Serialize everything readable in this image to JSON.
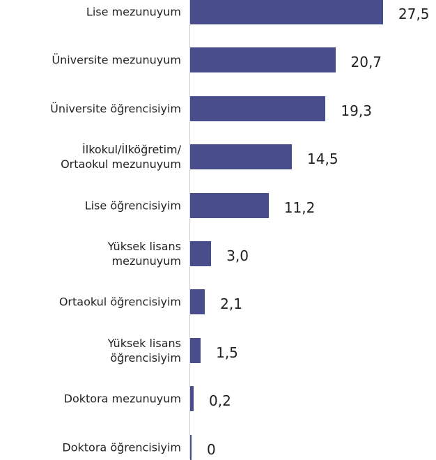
{
  "chart_data": {
    "type": "bar",
    "orientation": "horizontal",
    "categories": [
      "Lise mezunuyum",
      "Üniversite mezunuyum",
      "Üniversite öğrencisiyim",
      "İlkokul/İlköğretim/\nOrtaokul mezunuyum",
      "Lise öğrencisiyim",
      "Yüksek lisans\nmezunuyum",
      "Ortaokul öğrencisiyim",
      "Yüksek lisans\nöğrencisiyim",
      "Doktora mezunuyum",
      "Doktora öğrencisiyim"
    ],
    "values": [
      27.5,
      20.7,
      19.3,
      14.5,
      11.2,
      3.0,
      2.1,
      1.5,
      0.2,
      0
    ],
    "value_labels": [
      "27,5",
      "20,7",
      "19,3",
      "14,5",
      "11,2",
      "3,0",
      "2,1",
      "1,5",
      "0,2",
      "0"
    ],
    "color": "#4a4d8c"
  }
}
